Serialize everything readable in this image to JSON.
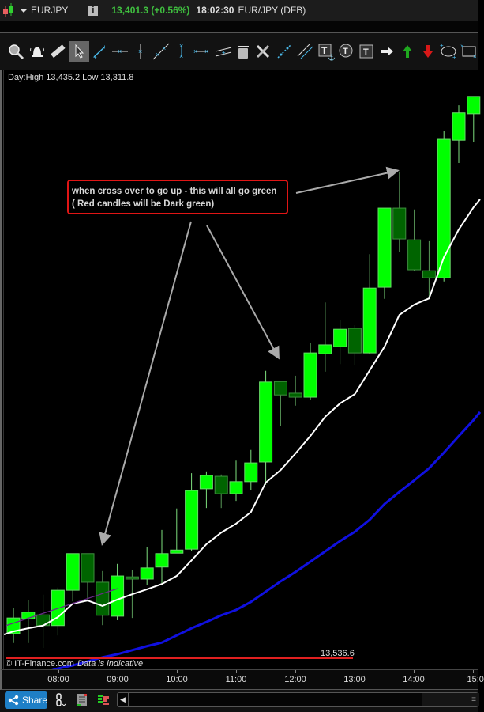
{
  "header": {
    "symbol": "EURJPY",
    "info_label": "i",
    "price_change": "13,401.3 (+0.56%)",
    "clock": "18:02:30",
    "instrument": "EUR/JPY (DFB)"
  },
  "toolbar": {
    "tools": [
      {
        "name": "zoom-tool",
        "icon": "magnifier-icon"
      },
      {
        "name": "alert-tool",
        "icon": "bell-icon"
      },
      {
        "name": "measure-tool",
        "icon": "ruler-icon"
      },
      {
        "name": "pointer-tool",
        "icon": "cursor-icon",
        "selected": true
      },
      {
        "name": "trend-line-tool",
        "icon": "line-icon"
      },
      {
        "name": "horizontal-line-tool",
        "icon": "hline-icon"
      },
      {
        "name": "vertical-line-tool",
        "icon": "vline-icon"
      },
      {
        "name": "ray-tool",
        "icon": "diagonal-line-icon"
      },
      {
        "name": "vertical-segment-tool",
        "icon": "vertical-segment-icon"
      },
      {
        "name": "horizontal-segment-tool",
        "icon": "horizontal-segment-icon"
      },
      {
        "name": "channel-tool",
        "icon": "channel-icon"
      },
      {
        "name": "delete-tool",
        "icon": "trash-icon"
      },
      {
        "name": "settings-tool",
        "icon": "tools-icon"
      },
      {
        "name": "extended-line-tool",
        "icon": "extended-line-icon"
      },
      {
        "name": "parallel-lines-tool",
        "icon": "parallel-lines-icon"
      },
      {
        "name": "anchored-text-tool",
        "icon": "text-anchor-icon"
      },
      {
        "name": "callout-text-tool",
        "icon": "text-bubble-icon"
      },
      {
        "name": "text-tool",
        "icon": "text-box-icon"
      },
      {
        "name": "arrow-tool",
        "icon": "arrow-right-icon"
      },
      {
        "name": "buy-arrow-tool",
        "icon": "arrow-up-icon",
        "color": "#1fa81f"
      },
      {
        "name": "sell-arrow-tool",
        "icon": "arrow-down-icon",
        "color": "#d81818"
      },
      {
        "name": "ellipse-tool",
        "icon": "ellipse-icon"
      },
      {
        "name": "rectangle-tool",
        "icon": "rectangle-icon"
      }
    ]
  },
  "chart": {
    "day_range": "Day:High 13,435.2 Low 13,311.8",
    "annotation": {
      "line1": "when cross over to go up - this will all go green",
      "line2": "( Red candles will be Dark green)"
    },
    "level_label": "13,536.6",
    "copyright": "© IT-Finance.com",
    "disclaimer": "Data is indicative",
    "time_labels": [
      "08:00",
      "09:00",
      "10:00",
      "11:00",
      "12:00",
      "13:00",
      "14:00",
      "15:0"
    ]
  },
  "chart_data": {
    "type": "candlestick",
    "interval": "15 min",
    "colors": {
      "up": "#00ff00",
      "down": "#006400",
      "fast_ma": "#ffffff",
      "slow_ma": "#1010e0",
      "level_line": "#e02020",
      "annotation_border": "#e01515"
    },
    "ohlc": [
      [
        13315.0,
        13320.7,
        13312.9,
        13318.5
      ],
      [
        13318.3,
        13322.6,
        13312.9,
        13319.8
      ],
      [
        13319.2,
        13323.7,
        13311.8,
        13316.8
      ],
      [
        13316.8,
        13325.3,
        13314.6,
        13324.7
      ],
      [
        13324.7,
        13332.9,
        13322.2,
        13332.9
      ],
      [
        13332.9,
        13332.9,
        13322.2,
        13326.5
      ],
      [
        13326.5,
        13329.0,
        13316.9,
        13319.1
      ],
      [
        13318.9,
        13330.6,
        13318.0,
        13327.9
      ],
      [
        13327.7,
        13329.3,
        13318.5,
        13327.2
      ],
      [
        13327.2,
        13334.3,
        13325.8,
        13329.7
      ],
      [
        13329.9,
        13338.2,
        13326.0,
        13332.9
      ],
      [
        13333.0,
        13343.0,
        13333.0,
        13333.7
      ],
      [
        13333.9,
        13350.9,
        13333.4,
        13347.0
      ],
      [
        13347.4,
        13351.3,
        13343.1,
        13350.4
      ],
      [
        13350.2,
        13350.6,
        13343.1,
        13346.3
      ],
      [
        13346.3,
        13353.7,
        13344.7,
        13349.0
      ],
      [
        13349.0,
        13356.1,
        13347.2,
        13353.2
      ],
      [
        13353.4,
        13373.8,
        13348.3,
        13371.3
      ],
      [
        13371.4,
        13371.4,
        13361.5,
        13368.4
      ],
      [
        13368.8,
        13372.7,
        13366.0,
        13367.9
      ],
      [
        13367.9,
        13380.1,
        13367.2,
        13377.8
      ],
      [
        13377.6,
        13389.1,
        13373.6,
        13379.6
      ],
      [
        13379.2,
        13385.1,
        13375.3,
        13383.1
      ],
      [
        13383.3,
        13384.0,
        13375.0,
        13377.8
      ],
      [
        13377.8,
        13399.9,
        13377.6,
        13392.3
      ],
      [
        13392.5,
        13410.2,
        13389.9,
        13410.2
      ],
      [
        13410.2,
        13418.4,
        13400.3,
        13403.3
      ],
      [
        13403.1,
        13409.9,
        13396.2,
        13396.4
      ],
      [
        13396.2,
        13402.8,
        13390.0,
        13394.6
      ],
      [
        13394.6,
        13427.4,
        13393.8,
        13425.6
      ],
      [
        13425.4,
        13433.2,
        13420.3,
        13431.5
      ],
      [
        13431.3,
        13435.2,
        13424.9,
        13435.2
      ]
    ],
    "fast_ma": [
      13315.5,
      13316.2,
      13316.8,
      13318.7,
      13321.7,
      13322.4,
      13321.2,
      13322.6,
      13323.8,
      13324.9,
      13326.1,
      13327.9,
      13331.4,
      13335.0,
      13337.6,
      13339.6,
      13342.2,
      13348.8,
      13351.6,
      13355.3,
      13359.2,
      13363.5,
      13366.5,
      13368.6,
      13373.9,
      13379.2,
      13386.3,
      13388.6,
      13390.0,
      13399.2,
      13405.4,
      13410.4
    ],
    "slow_ma": [
      null,
      null,
      null,
      13307.2,
      13307.9,
      13308.8,
      13309.7,
      13310.4,
      13311.3,
      13312.2,
      13313.0,
      13314.6,
      13316.2,
      13317.6,
      13319.1,
      13320.3,
      13322.1,
      13324.4,
      13326.7,
      13328.8,
      13331.1,
      13333.4,
      13335.7,
      13337.8,
      13340.5,
      13344.0,
      13346.7,
      13349.3,
      13352.0,
      13355.5,
      13359.2,
      13362.8
    ]
  },
  "bottom": {
    "share_label": "Share",
    "scroll_left": "◀",
    "scroll_grip": "≡"
  }
}
